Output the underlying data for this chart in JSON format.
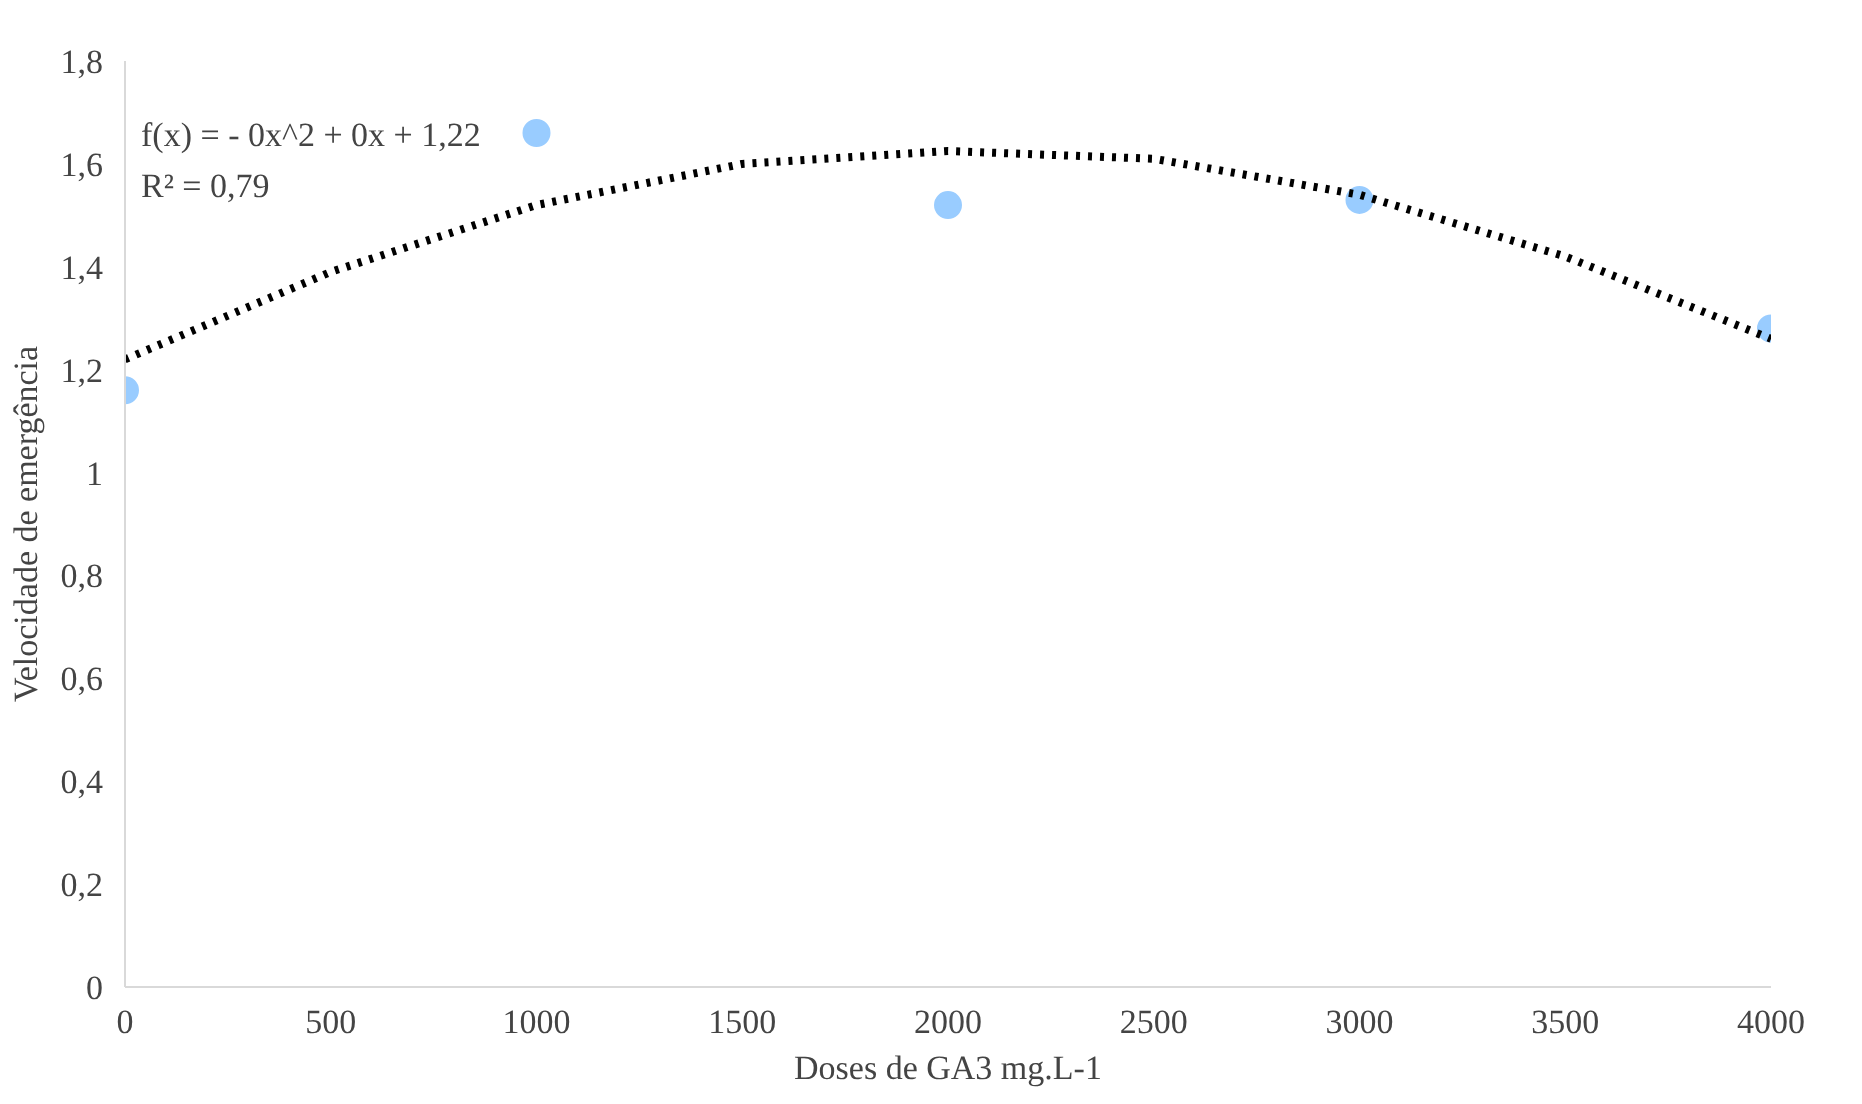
{
  "chart_data": {
    "type": "scatter",
    "xlabel": "Doses de GA3 mg.L-1",
    "ylabel": "Velocidade de emergência",
    "x": [
      0,
      1000,
      2000,
      3000,
      4000
    ],
    "series": [
      {
        "color": "#99ccff",
        "values": [
          1.16,
          1.66,
          1.52,
          1.53,
          1.28
        ]
      },
      {
        "type": "line",
        "color": "#000000",
        "line_style": "dotted",
        "marker": "none",
        "x": [
          0,
          500,
          1000,
          1500,
          2000,
          2500,
          3000,
          3500,
          4000
        ],
        "values": [
          1.22,
          1.39,
          1.52,
          1.6,
          1.625,
          1.61,
          1.54,
          1.42,
          1.26
        ]
      }
    ],
    "marker": "circle",
    "annotations": [
      "f(x) =  - 0x^2 + 0x + 1,22",
      "R² = 0,79"
    ],
    "xlim": [
      0,
      4000
    ],
    "xticks": [
      0,
      500,
      1000,
      1500,
      2000,
      2500,
      3000,
      3500,
      4000
    ],
    "ylim": [
      0,
      1.8
    ],
    "yticks": [
      0,
      {
        "value": 0.2,
        "label": "0,2"
      },
      {
        "value": 0.4,
        "label": "0,4"
      },
      {
        "value": 0.6,
        "label": "0,6"
      },
      {
        "value": 0.8,
        "label": "0,8"
      },
      1,
      {
        "value": 1.2,
        "label": "1,2"
      },
      {
        "value": 1.4,
        "label": "1,4"
      },
      {
        "value": 1.6,
        "label": "1,6"
      },
      {
        "value": 1.8,
        "label": "1,8"
      }
    ],
    "grid": false
  }
}
